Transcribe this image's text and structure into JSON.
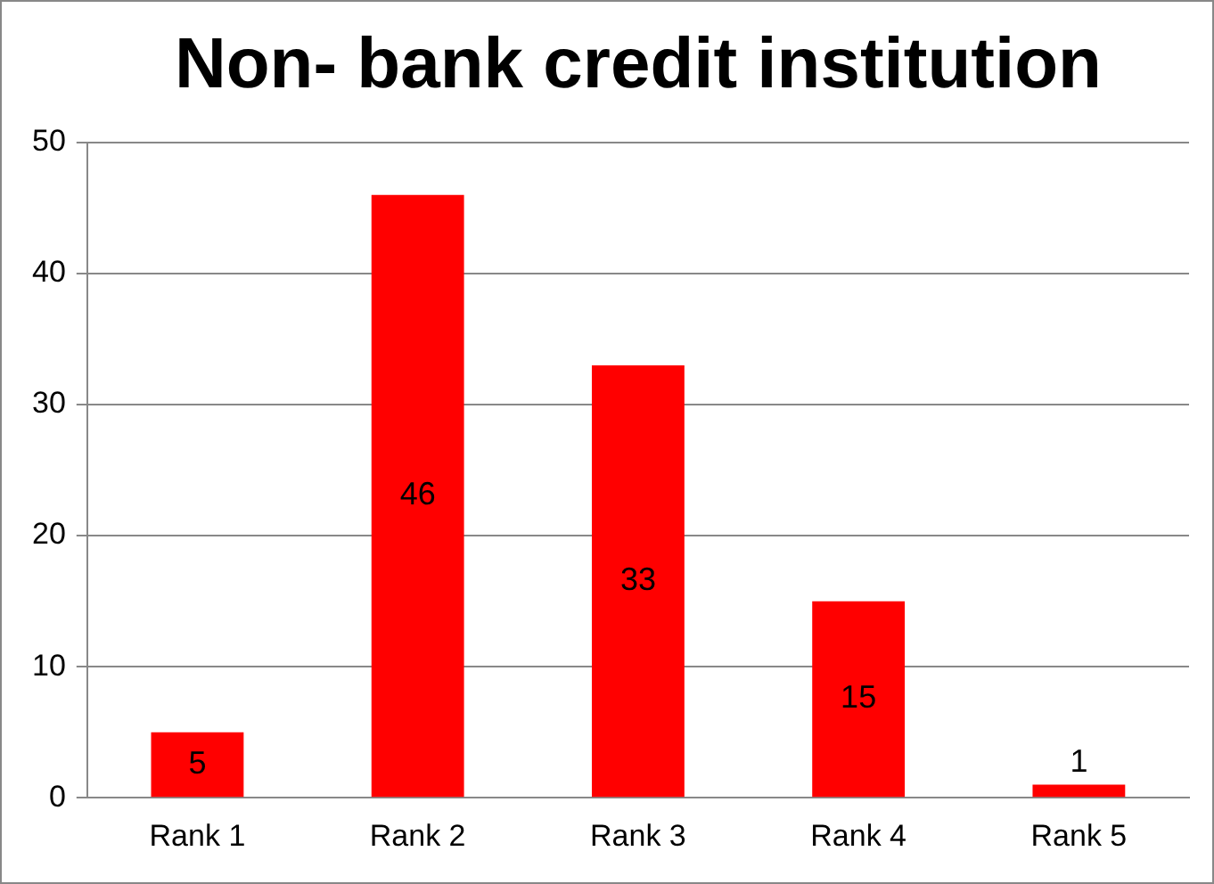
{
  "chart_data": {
    "type": "bar",
    "title": "Non- bank credit institution",
    "categories": [
      "Rank 1",
      "Rank 2",
      "Rank 3",
      "Rank 4",
      "Rank 5"
    ],
    "values": [
      5,
      46,
      33,
      15,
      1
    ],
    "color": "#ff0000",
    "ylim": [
      0,
      50
    ],
    "yticks": [
      0,
      10,
      20,
      30,
      40,
      50
    ],
    "grid": "y",
    "data_labels": true,
    "legend": false
  }
}
